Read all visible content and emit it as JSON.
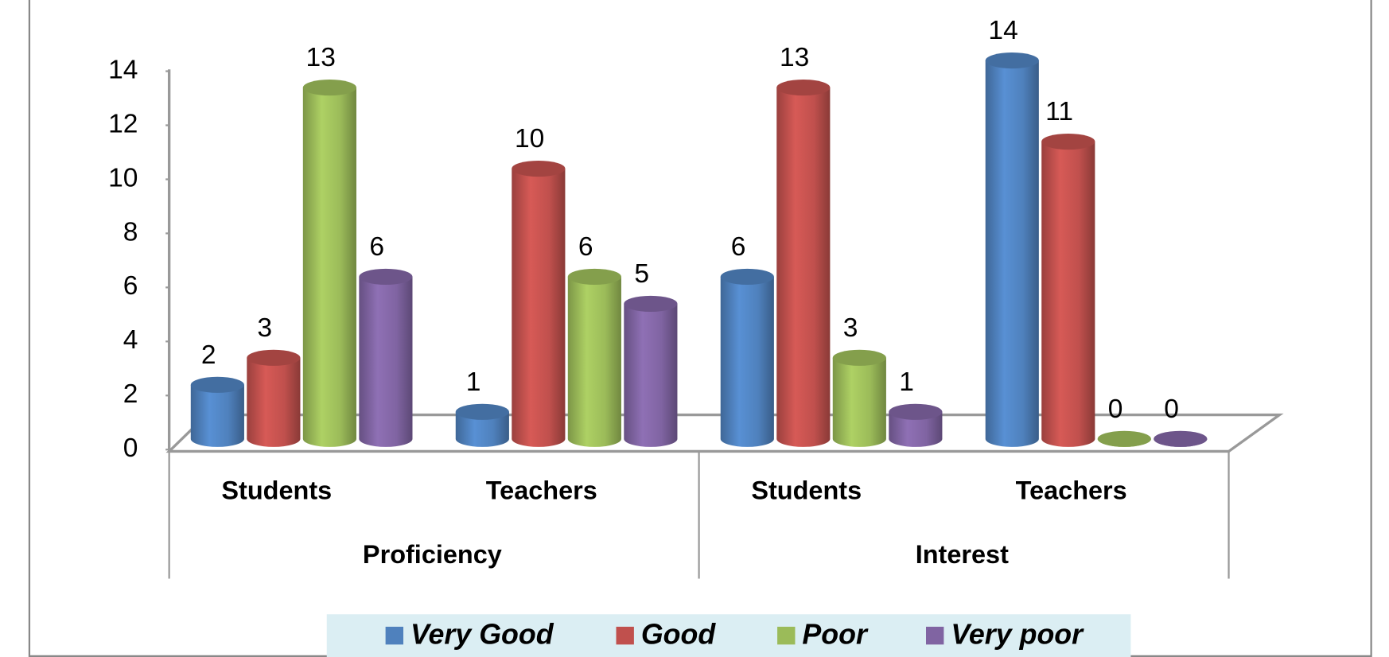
{
  "chart_data": {
    "type": "bar3d",
    "groups": [
      {
        "name": "Proficiency",
        "categories": [
          "Students",
          "Teachers"
        ]
      },
      {
        "name": "Interest",
        "categories": [
          "Students",
          "Teachers"
        ]
      }
    ],
    "series": [
      {
        "name": "Very Good",
        "color": "#4f81bd",
        "values": [
          2,
          1,
          6,
          14
        ]
      },
      {
        "name": "Good",
        "color": "#c0504d",
        "values": [
          3,
          10,
          13,
          11
        ]
      },
      {
        "name": "Poor",
        "color": "#9bbb59",
        "values": [
          13,
          6,
          3,
          0
        ]
      },
      {
        "name": "Very poor",
        "color": "#8064a2",
        "values": [
          6,
          5,
          1,
          0
        ]
      }
    ],
    "ylim": [
      0,
      14
    ],
    "yticks": [
      0,
      2,
      4,
      6,
      8,
      10,
      12,
      14
    ],
    "grid": false,
    "legend": "bottom"
  }
}
